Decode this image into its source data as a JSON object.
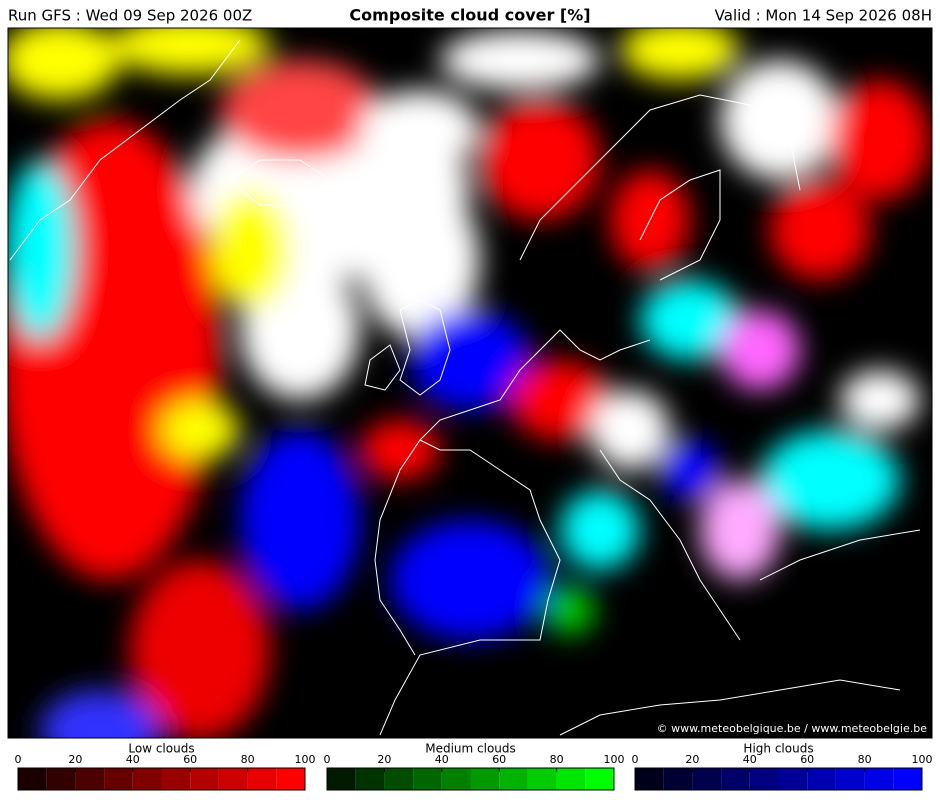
{
  "header": {
    "run": "Run GFS : Wed 09 Sep 2026 00Z",
    "title": "Composite cloud cover [%]",
    "valid": "Valid : Mon 14 Sep 2026 08H"
  },
  "credit": "© www.meteobelgique.be / www.meteobelgie.be",
  "legends": [
    {
      "title": "Low clouds",
      "lim": [
        0,
        100
      ],
      "ticks": [
        0,
        20,
        40,
        60,
        80,
        100
      ],
      "colors": [
        "#1a0000",
        "#330000",
        "#4d0000",
        "#660000",
        "#800000",
        "#990000",
        "#b30000",
        "#cc0000",
        "#e60000",
        "#ff0000"
      ]
    },
    {
      "title": "Medium clouds",
      "lim": [
        0,
        100
      ],
      "ticks": [
        0,
        20,
        40,
        60,
        80,
        100
      ],
      "colors": [
        "#001a00",
        "#003300",
        "#004d00",
        "#006600",
        "#008000",
        "#009900",
        "#00b300",
        "#00cc00",
        "#00e600",
        "#00ff00"
      ]
    },
    {
      "title": "High clouds",
      "lim": [
        0,
        100
      ],
      "ticks": [
        0,
        20,
        40,
        60,
        80,
        100
      ],
      "colors": [
        "#00001a",
        "#000033",
        "#00004d",
        "#000066",
        "#000080",
        "#000099",
        "#0000b3",
        "#0000cc",
        "#0000e6",
        "#0000ff"
      ]
    }
  ]
}
